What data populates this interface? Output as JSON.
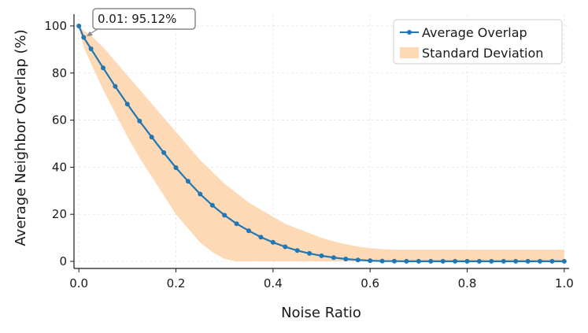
{
  "chart_data": {
    "type": "line",
    "xlabel": "Noise Ratio",
    "ylabel": "Average Neighbor Overlap (%)",
    "xlim": [
      -0.01,
      1.01
    ],
    "ylim": [
      -3,
      105
    ],
    "x_ticks": [
      "0.0",
      "0.2",
      "0.4",
      "0.6",
      "0.8",
      "1.0"
    ],
    "y_ticks": [
      "0",
      "20",
      "40",
      "60",
      "80",
      "100"
    ],
    "grid": true,
    "legend_position": "top-right",
    "series": [
      {
        "name": "Average Overlap",
        "color": "#1f77b4",
        "x": [
          0.0,
          0.01,
          0.025,
          0.05,
          0.075,
          0.1,
          0.125,
          0.15,
          0.175,
          0.2,
          0.225,
          0.25,
          0.275,
          0.3,
          0.325,
          0.35,
          0.375,
          0.4,
          0.425,
          0.45,
          0.475,
          0.5,
          0.525,
          0.55,
          0.575,
          0.6,
          0.625,
          0.65,
          0.675,
          0.7,
          0.725,
          0.75,
          0.775,
          0.8,
          0.825,
          0.85,
          0.875,
          0.9,
          0.925,
          0.95,
          0.975,
          1.0
        ],
        "y": [
          100,
          95.12,
          90.3,
          82.2,
          74.3,
          66.8,
          59.6,
          52.8,
          46.2,
          39.8,
          34.0,
          28.6,
          23.8,
          19.6,
          16.0,
          13.0,
          10.3,
          8.1,
          6.2,
          4.6,
          3.4,
          2.4,
          1.6,
          1.0,
          0.6,
          0.3,
          0.15,
          0.1,
          0.05,
          0.05,
          0.05,
          0.05,
          0.05,
          0.05,
          0.05,
          0.05,
          0.05,
          0.05,
          0.05,
          0.05,
          0.05,
          0.05
        ]
      },
      {
        "name": "Standard Deviation",
        "color": "#fdd0a2",
        "x": [
          0.0,
          0.01,
          0.025,
          0.05,
          0.075,
          0.1,
          0.125,
          0.15,
          0.175,
          0.2,
          0.225,
          0.25,
          0.275,
          0.3,
          0.325,
          0.35,
          0.375,
          0.4,
          0.425,
          0.45,
          0.475,
          0.5,
          0.525,
          0.55,
          0.575,
          0.6,
          0.625,
          0.65,
          0.675,
          0.7,
          0.725,
          0.75,
          0.775,
          0.8,
          0.825,
          0.85,
          0.875,
          0.9,
          0.925,
          0.95,
          0.975,
          1.0
        ],
        "lower": [
          100,
          91,
          84,
          73,
          63,
          53,
          44,
          36,
          28,
          20,
          14,
          8,
          4,
          1,
          0,
          0,
          0,
          0,
          0,
          0,
          0,
          0,
          0,
          0,
          0,
          0,
          0,
          0,
          0,
          0,
          0,
          0,
          0,
          0,
          0,
          0,
          0,
          0,
          0,
          0,
          0,
          0
        ],
        "upper": [
          100,
          98,
          96,
          91,
          85,
          79,
          73,
          67,
          61,
          55,
          49,
          43,
          38,
          33,
          29,
          25,
          22,
          19,
          16,
          14,
          12,
          10,
          8.5,
          7.3,
          6.3,
          5.6,
          5.2,
          5.0,
          5.0,
          5.0,
          5.0,
          5.0,
          5.0,
          5.0,
          5.0,
          5.0,
          5.0,
          5.0,
          5.0,
          5.0,
          5.0,
          5.0
        ]
      }
    ],
    "annotation": {
      "text": "0.01: 95.12%",
      "x": 0.01,
      "y": 95.12
    }
  }
}
